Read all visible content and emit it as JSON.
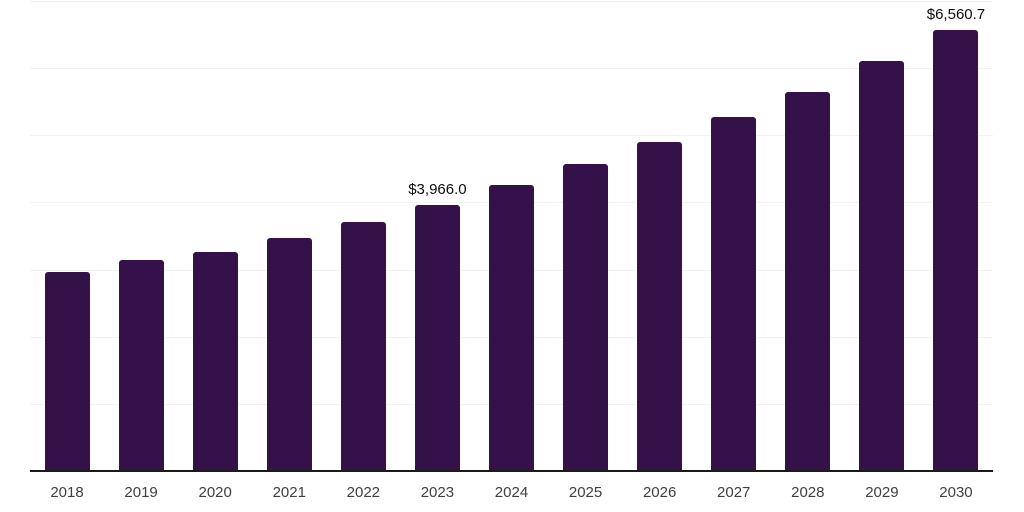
{
  "chart_data": {
    "type": "bar",
    "title": "",
    "xlabel": "",
    "ylabel": "",
    "categories": [
      "2018",
      "2019",
      "2020",
      "2021",
      "2022",
      "2023",
      "2024",
      "2025",
      "2026",
      "2027",
      "2028",
      "2029",
      "2030"
    ],
    "values": [
      2960,
      3150,
      3260,
      3470,
      3705,
      3966.0,
      4260,
      4575,
      4900,
      5275,
      5650,
      6100,
      6560.7
    ],
    "data_labels": [
      {
        "category": "2023",
        "text": "$3,966.0"
      },
      {
        "category": "2030",
        "text": "$6,560.7"
      }
    ],
    "ylim": [
      0,
      7000
    ],
    "gridline_step": 1000,
    "grid": true,
    "legend": false,
    "y_axis_labels_visible": false
  },
  "colors": {
    "bar": "#35114A",
    "axis_line": "#1a1a1a",
    "gridline": "#f2f2f2",
    "tick_label": "#3f3f3f",
    "data_label": "#0d0d0d",
    "background": "#ffffff"
  }
}
